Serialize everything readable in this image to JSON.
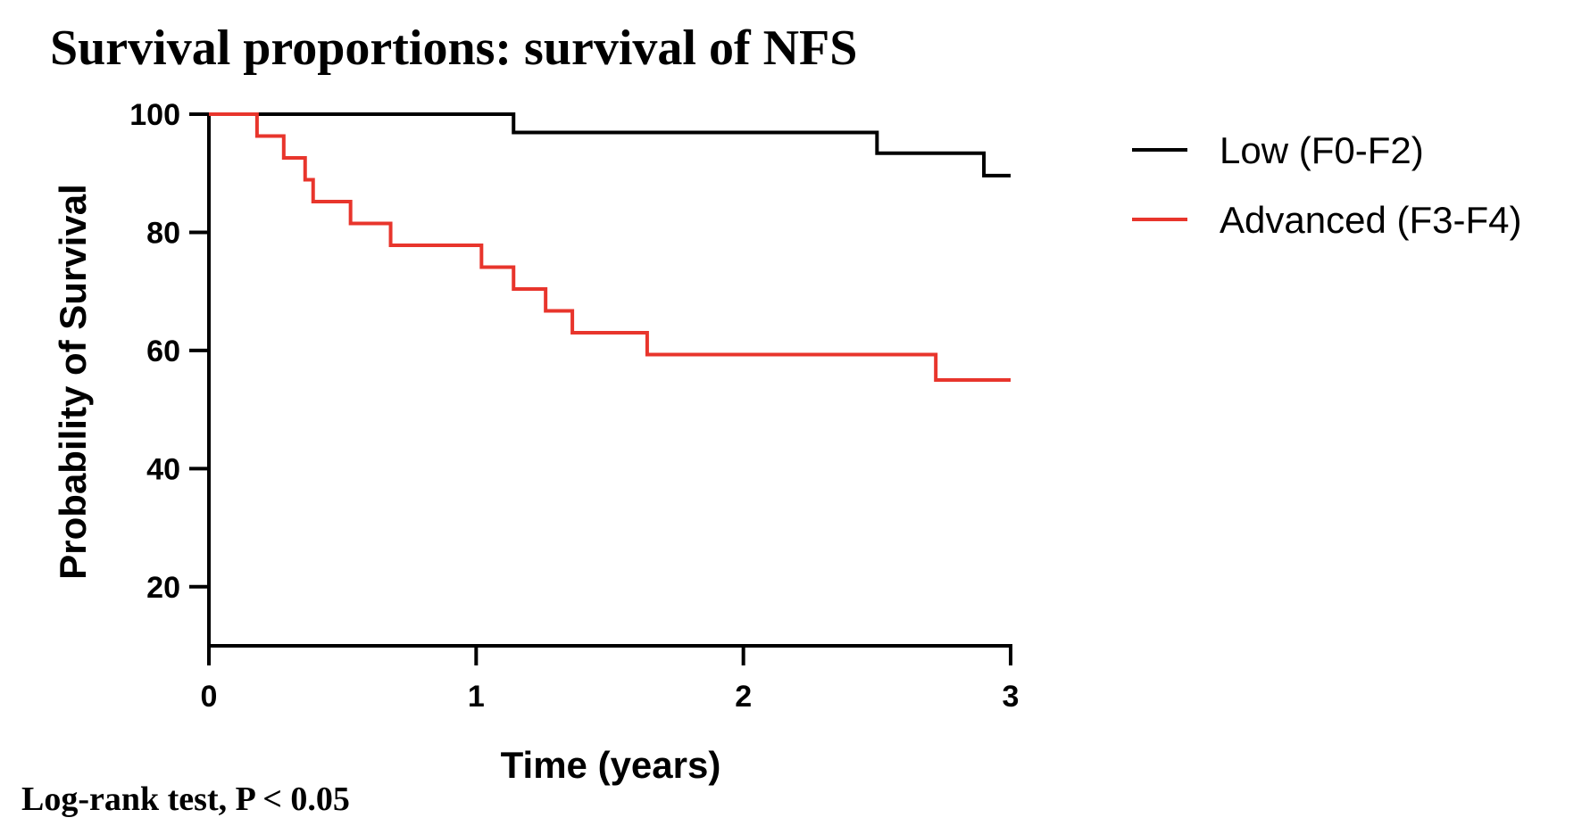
{
  "chart_data": {
    "type": "line",
    "subtype": "step (Kaplan-Meier survival curve)",
    "title": "Survival proportions: survival of NFS",
    "xlabel": "Time (years)",
    "ylabel": "Probability of Survival",
    "xlim": [
      0,
      3
    ],
    "ylim": [
      10,
      100
    ],
    "xticks": [
      0,
      1,
      2,
      3
    ],
    "yticks": [
      20,
      40,
      60,
      80,
      100
    ],
    "grid": false,
    "legend_position": "right",
    "annotation": "Log-rank test, P < 0.05",
    "series": [
      {
        "name": "Low (F0-F2)",
        "color": "#000000",
        "x": [
          0,
          1.14,
          2.5,
          2.9,
          3.0
        ],
        "y": [
          100,
          96.9,
          93.4,
          89.6,
          89.6
        ]
      },
      {
        "name": "Advanced (F3-F4)",
        "color": "#e8352c",
        "x": [
          0,
          0.18,
          0.28,
          0.36,
          0.39,
          0.53,
          0.68,
          1.02,
          1.14,
          1.26,
          1.36,
          1.64,
          2.72,
          3.0
        ],
        "y": [
          100,
          96.3,
          92.6,
          88.9,
          85.2,
          81.5,
          77.8,
          74.1,
          70.4,
          66.7,
          63.0,
          59.3,
          55.0,
          55.0
        ]
      }
    ]
  }
}
